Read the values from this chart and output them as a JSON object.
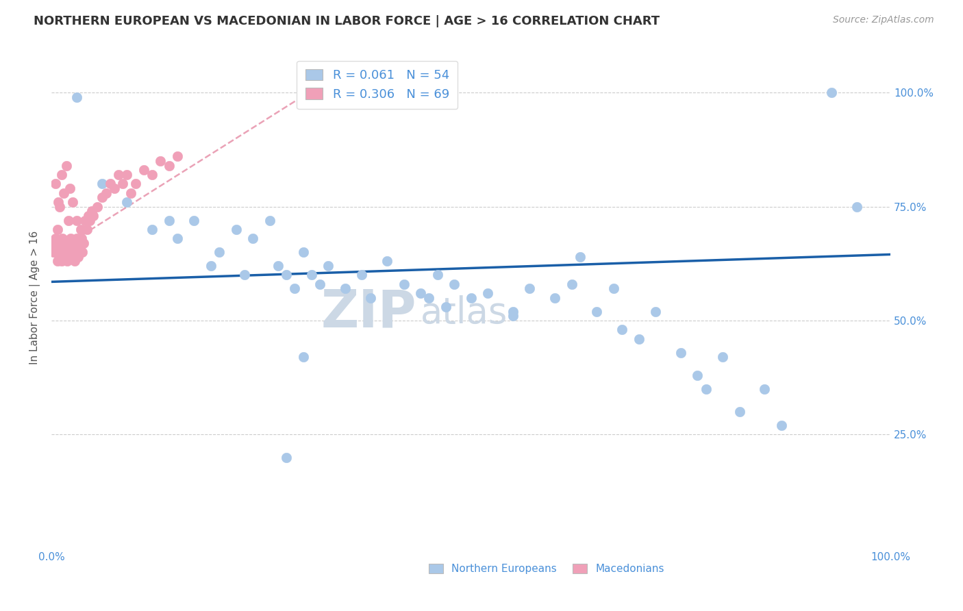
{
  "title": "NORTHERN EUROPEAN VS MACEDONIAN IN LABOR FORCE | AGE > 16 CORRELATION CHART",
  "source_text": "Source: ZipAtlas.com",
  "ylabel": "In Labor Force | Age > 16",
  "watermark_line1": "ZIP",
  "watermark_line2": "atlas",
  "xlim": [
    0.0,
    1.0
  ],
  "ylim": [
    0.0,
    1.1
  ],
  "blue_R": 0.061,
  "blue_N": 54,
  "pink_R": 0.306,
  "pink_N": 69,
  "legend_label_blue": "Northern Europeans",
  "legend_label_pink": "Macedonians",
  "blue_color": "#aac8e8",
  "pink_color": "#f0a0b8",
  "blue_line_color": "#1a5fa8",
  "pink_line_color": "#e07090",
  "stat_text_color": "#4a90d9",
  "title_color": "#333333",
  "background_color": "#ffffff",
  "blue_line_x0": 0.0,
  "blue_line_y0": 0.585,
  "blue_line_x1": 1.0,
  "blue_line_y1": 0.645,
  "pink_line_x0": 0.0,
  "pink_line_y0": 0.645,
  "pink_line_x1": 0.35,
  "pink_line_y1": 1.05,
  "blue_x": [
    0.03,
    0.06,
    0.09,
    0.12,
    0.14,
    0.15,
    0.17,
    0.19,
    0.2,
    0.22,
    0.23,
    0.24,
    0.26,
    0.27,
    0.28,
    0.29,
    0.3,
    0.31,
    0.32,
    0.33,
    0.35,
    0.37,
    0.38,
    0.4,
    0.42,
    0.44,
    0.45,
    0.46,
    0.47,
    0.48,
    0.5,
    0.52,
    0.55,
    0.57,
    0.6,
    0.62,
    0.63,
    0.65,
    0.67,
    0.68,
    0.7,
    0.72,
    0.75,
    0.77,
    0.78,
    0.8,
    0.82,
    0.85,
    0.87,
    0.3,
    0.55,
    0.93,
    0.96,
    0.28
  ],
  "blue_y": [
    0.99,
    0.8,
    0.76,
    0.7,
    0.72,
    0.68,
    0.72,
    0.62,
    0.65,
    0.7,
    0.6,
    0.68,
    0.72,
    0.62,
    0.6,
    0.57,
    0.65,
    0.6,
    0.58,
    0.62,
    0.57,
    0.6,
    0.55,
    0.63,
    0.58,
    0.56,
    0.55,
    0.6,
    0.53,
    0.58,
    0.55,
    0.56,
    0.52,
    0.57,
    0.55,
    0.58,
    0.64,
    0.52,
    0.57,
    0.48,
    0.46,
    0.52,
    0.43,
    0.38,
    0.35,
    0.42,
    0.3,
    0.35,
    0.27,
    0.42,
    0.51,
    1.0,
    0.75,
    0.2
  ],
  "pink_x": [
    0.002,
    0.003,
    0.004,
    0.005,
    0.006,
    0.007,
    0.008,
    0.009,
    0.01,
    0.011,
    0.012,
    0.013,
    0.014,
    0.015,
    0.016,
    0.017,
    0.018,
    0.019,
    0.02,
    0.021,
    0.022,
    0.023,
    0.024,
    0.025,
    0.026,
    0.027,
    0.028,
    0.029,
    0.03,
    0.031,
    0.032,
    0.033,
    0.034,
    0.035,
    0.036,
    0.037,
    0.038,
    0.04,
    0.042,
    0.044,
    0.046,
    0.048,
    0.05,
    0.055,
    0.06,
    0.065,
    0.07,
    0.075,
    0.08,
    0.085,
    0.09,
    0.095,
    0.1,
    0.11,
    0.12,
    0.13,
    0.14,
    0.15,
    0.005,
    0.01,
    0.015,
    0.02,
    0.025,
    0.007,
    0.012,
    0.018,
    0.008,
    0.022,
    0.03
  ],
  "pink_y": [
    0.65,
    0.67,
    0.65,
    0.68,
    0.66,
    0.63,
    0.65,
    0.67,
    0.66,
    0.64,
    0.63,
    0.68,
    0.65,
    0.67,
    0.64,
    0.66,
    0.65,
    0.63,
    0.64,
    0.67,
    0.65,
    0.68,
    0.66,
    0.64,
    0.67,
    0.65,
    0.63,
    0.66,
    0.68,
    0.65,
    0.64,
    0.67,
    0.66,
    0.7,
    0.68,
    0.65,
    0.67,
    0.72,
    0.7,
    0.73,
    0.72,
    0.74,
    0.73,
    0.75,
    0.77,
    0.78,
    0.8,
    0.79,
    0.82,
    0.8,
    0.82,
    0.78,
    0.8,
    0.83,
    0.82,
    0.85,
    0.84,
    0.86,
    0.8,
    0.75,
    0.78,
    0.72,
    0.76,
    0.7,
    0.82,
    0.84,
    0.76,
    0.79,
    0.72
  ],
  "grid_color": "#cccccc",
  "title_fontsize": 13,
  "axis_label_fontsize": 11,
  "tick_fontsize": 11,
  "stat_fontsize": 13,
  "watermark_fontsize_zip": 55,
  "watermark_fontsize_atlas": 38,
  "watermark_color": "#ccd8e5",
  "right_ytick_color": "#4a90d9",
  "right_ytick_fontsize": 11
}
